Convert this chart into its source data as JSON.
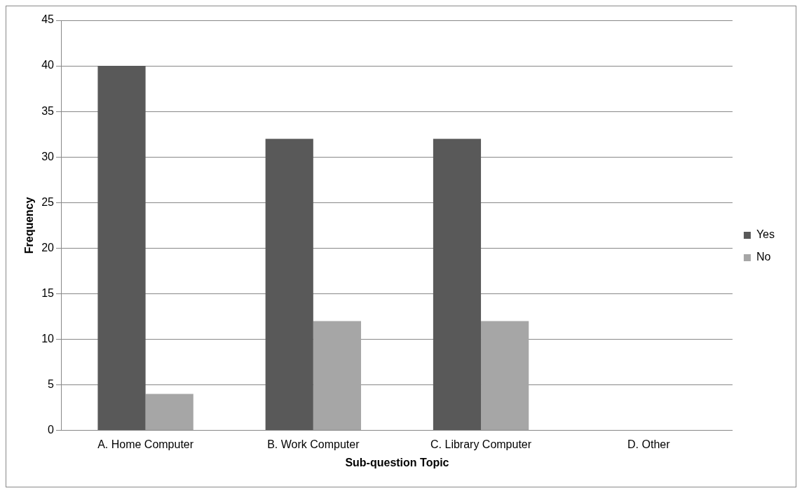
{
  "chart_data": {
    "type": "bar",
    "xlabel": "Sub-question Topic",
    "ylabel": "Frequency",
    "categories": [
      "A. Home Computer",
      "B. Work Computer",
      "C. Library Computer",
      "D. Other"
    ],
    "series": [
      {
        "name": "Yes",
        "color": "#595959",
        "values": [
          40,
          32,
          32,
          0
        ]
      },
      {
        "name": "No",
        "color": "#a6a6a6",
        "values": [
          4,
          12,
          12,
          0
        ]
      }
    ],
    "ylim": [
      0,
      45
    ],
    "yticks": [
      0,
      5,
      10,
      15,
      20,
      25,
      30,
      35,
      40,
      45
    ],
    "grid": "y",
    "legend": "right"
  }
}
